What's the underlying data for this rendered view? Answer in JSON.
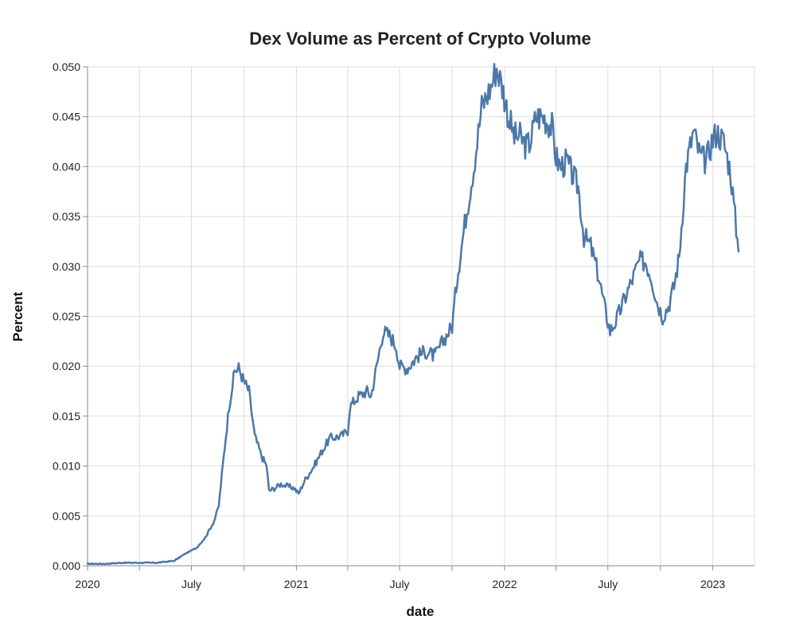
{
  "chart_data": {
    "type": "line",
    "title": "Dex Volume as Percent of Crypto Volume",
    "xlabel": "date",
    "ylabel": "Percent",
    "ylim": [
      0,
      0.05
    ],
    "xlim": [
      "2020-01-01",
      "2023-03-15"
    ],
    "grid": true,
    "y_ticks": [
      {
        "value": 0,
        "label": "0.000"
      },
      {
        "value": 0.005,
        "label": "0.005"
      },
      {
        "value": 0.01,
        "label": "0.010"
      },
      {
        "value": 0.015,
        "label": "0.015"
      },
      {
        "value": 0.02,
        "label": "0.020"
      },
      {
        "value": 0.025,
        "label": "0.025"
      },
      {
        "value": 0.03,
        "label": "0.030"
      },
      {
        "value": 0.035,
        "label": "0.035"
      },
      {
        "value": 0.04,
        "label": "0.040"
      },
      {
        "value": 0.045,
        "label": "0.045"
      },
      {
        "value": 0.05,
        "label": "0.050"
      }
    ],
    "x_ticks": [
      {
        "date": "2020-01-01",
        "label": "2020"
      },
      {
        "date": "2020-04-01",
        "label": ""
      },
      {
        "date": "2020-07-01",
        "label": "July"
      },
      {
        "date": "2020-10-01",
        "label": ""
      },
      {
        "date": "2021-01-01",
        "label": "2021"
      },
      {
        "date": "2021-04-01",
        "label": ""
      },
      {
        "date": "2021-07-01",
        "label": "July"
      },
      {
        "date": "2021-10-01",
        "label": ""
      },
      {
        "date": "2022-01-01",
        "label": "2022"
      },
      {
        "date": "2022-04-01",
        "label": ""
      },
      {
        "date": "2022-07-01",
        "label": "July"
      },
      {
        "date": "2022-10-01",
        "label": ""
      },
      {
        "date": "2023-01-01",
        "label": "2023"
      }
    ],
    "series": [
      {
        "name": "Percent",
        "color": "#4c78a8",
        "points": [
          [
            "2020-01-01",
            0.0002
          ],
          [
            "2020-02-01",
            0.0002
          ],
          [
            "2020-03-01",
            0.0003
          ],
          [
            "2020-04-01",
            0.0003
          ],
          [
            "2020-05-01",
            0.0003
          ],
          [
            "2020-06-01",
            0.0005
          ],
          [
            "2020-06-20",
            0.0012
          ],
          [
            "2020-07-10",
            0.0018
          ],
          [
            "2020-07-25",
            0.0028
          ],
          [
            "2020-08-10",
            0.0045
          ],
          [
            "2020-08-18",
            0.006
          ],
          [
            "2020-08-25",
            0.01
          ],
          [
            "2020-09-05",
            0.016
          ],
          [
            "2020-09-15",
            0.0195
          ],
          [
            "2020-09-22",
            0.0198
          ],
          [
            "2020-10-01",
            0.0185
          ],
          [
            "2020-10-10",
            0.0175
          ],
          [
            "2020-10-20",
            0.013
          ],
          [
            "2020-11-01",
            0.011
          ],
          [
            "2020-11-10",
            0.01
          ],
          [
            "2020-11-14",
            0.0075
          ],
          [
            "2020-11-25",
            0.0078
          ],
          [
            "2020-12-05",
            0.0082
          ],
          [
            "2020-12-15",
            0.008
          ],
          [
            "2020-12-28",
            0.0078
          ],
          [
            "2021-01-05",
            0.0072
          ],
          [
            "2021-01-15",
            0.0085
          ],
          [
            "2021-02-01",
            0.01
          ],
          [
            "2021-02-15",
            0.0115
          ],
          [
            "2021-03-01",
            0.0128
          ],
          [
            "2021-03-20",
            0.013
          ],
          [
            "2021-04-01",
            0.0135
          ],
          [
            "2021-04-05",
            0.016
          ],
          [
            "2021-04-20",
            0.017
          ],
          [
            "2021-05-05",
            0.0175
          ],
          [
            "2021-05-12",
            0.017
          ],
          [
            "2021-05-25",
            0.021
          ],
          [
            "2021-06-02",
            0.0235
          ],
          [
            "2021-06-15",
            0.023
          ],
          [
            "2021-06-25",
            0.022
          ],
          [
            "2021-07-01",
            0.02
          ],
          [
            "2021-07-15",
            0.0198
          ],
          [
            "2021-08-01",
            0.021
          ],
          [
            "2021-08-15",
            0.0215
          ],
          [
            "2021-09-01",
            0.021
          ],
          [
            "2021-09-15",
            0.0225
          ],
          [
            "2021-10-01",
            0.024
          ],
          [
            "2021-10-10",
            0.029
          ],
          [
            "2021-10-25",
            0.035
          ],
          [
            "2021-11-08",
            0.04
          ],
          [
            "2021-11-22",
            0.046
          ],
          [
            "2021-12-08",
            0.048
          ],
          [
            "2021-12-18",
            0.05
          ],
          [
            "2021-12-28",
            0.048
          ],
          [
            "2022-01-08",
            0.045
          ],
          [
            "2022-01-18",
            0.043
          ],
          [
            "2022-01-28",
            0.043
          ],
          [
            "2022-02-08",
            0.042
          ],
          [
            "2022-02-15",
            0.0425
          ],
          [
            "2022-02-25",
            0.045
          ],
          [
            "2022-03-10",
            0.045
          ],
          [
            "2022-03-25",
            0.044
          ],
          [
            "2022-04-01",
            0.041
          ],
          [
            "2022-04-08",
            0.04
          ],
          [
            "2022-04-20",
            0.0405
          ],
          [
            "2022-05-01",
            0.039
          ],
          [
            "2022-05-10",
            0.038
          ],
          [
            "2022-05-20",
            0.033
          ],
          [
            "2022-06-01",
            0.032
          ],
          [
            "2022-06-15",
            0.029
          ],
          [
            "2022-06-25",
            0.026
          ],
          [
            "2022-07-05",
            0.0235
          ],
          [
            "2022-07-15",
            0.0245
          ],
          [
            "2022-08-01",
            0.027
          ],
          [
            "2022-08-15",
            0.029
          ],
          [
            "2022-08-25",
            0.0305
          ],
          [
            "2022-09-05",
            0.0305
          ],
          [
            "2022-09-15",
            0.029
          ],
          [
            "2022-09-25",
            0.0265
          ],
          [
            "2022-10-05",
            0.025
          ],
          [
            "2022-10-15",
            0.026
          ],
          [
            "2022-10-25",
            0.028
          ],
          [
            "2022-11-03",
            0.031
          ],
          [
            "2022-11-15",
            0.04
          ],
          [
            "2022-11-28",
            0.0435
          ],
          [
            "2022-12-10",
            0.041
          ],
          [
            "2022-12-20",
            0.0405
          ],
          [
            "2022-12-30",
            0.0425
          ],
          [
            "2023-01-08",
            0.0435
          ],
          [
            "2023-01-20",
            0.0425
          ],
          [
            "2023-02-01",
            0.0395
          ],
          [
            "2023-02-15",
            0.0315
          ]
        ]
      }
    ]
  }
}
